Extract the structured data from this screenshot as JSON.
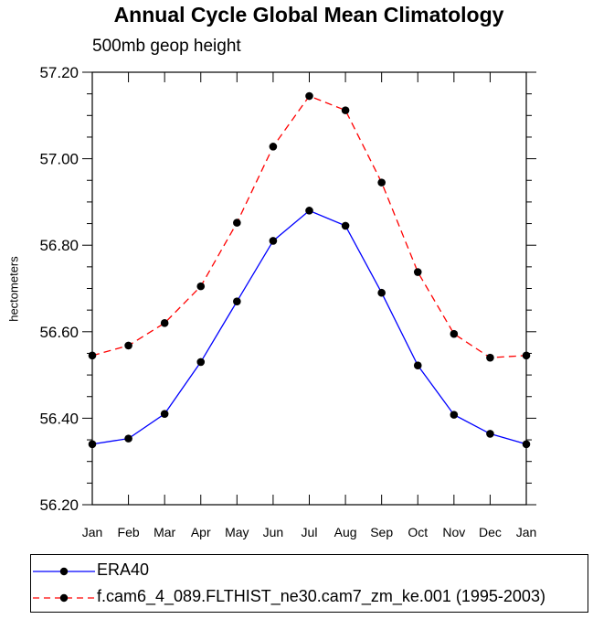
{
  "chart_data": {
    "type": "line",
    "title": "Annual Cycle Global Mean Climatology",
    "subtitle": "500mb geop height",
    "ylabel": "hectometers",
    "xlabel": "",
    "categories": [
      "Jan",
      "Feb",
      "Mar",
      "Apr",
      "May",
      "Jun",
      "Jul",
      "Aug",
      "Sep",
      "Oct",
      "Nov",
      "Dec",
      "Jan"
    ],
    "ylim": [
      56.2,
      57.2
    ],
    "yticks": [
      "56.20",
      "56.40",
      "56.60",
      "56.80",
      "57.00",
      "57.20"
    ],
    "ytick_values": [
      56.2,
      56.4,
      56.6,
      56.8,
      57.0,
      57.2
    ],
    "legend_position": "bottom",
    "grid": false,
    "series": [
      {
        "name": "ERA40",
        "color": "#0000ff",
        "dash": "solid",
        "values": [
          56.34,
          56.353,
          56.41,
          56.53,
          56.67,
          56.81,
          56.88,
          56.845,
          56.69,
          56.522,
          56.408,
          56.364,
          56.34
        ]
      },
      {
        "name": "f.cam6_4_089.FLTHIST_ne30.cam7_zm_ke.001 (1995-2003)",
        "color": "#ff0000",
        "dash": "dashed",
        "values": [
          56.545,
          56.568,
          56.62,
          56.705,
          56.852,
          57.028,
          57.145,
          57.112,
          56.945,
          56.738,
          56.595,
          56.54,
          56.545
        ]
      }
    ]
  }
}
